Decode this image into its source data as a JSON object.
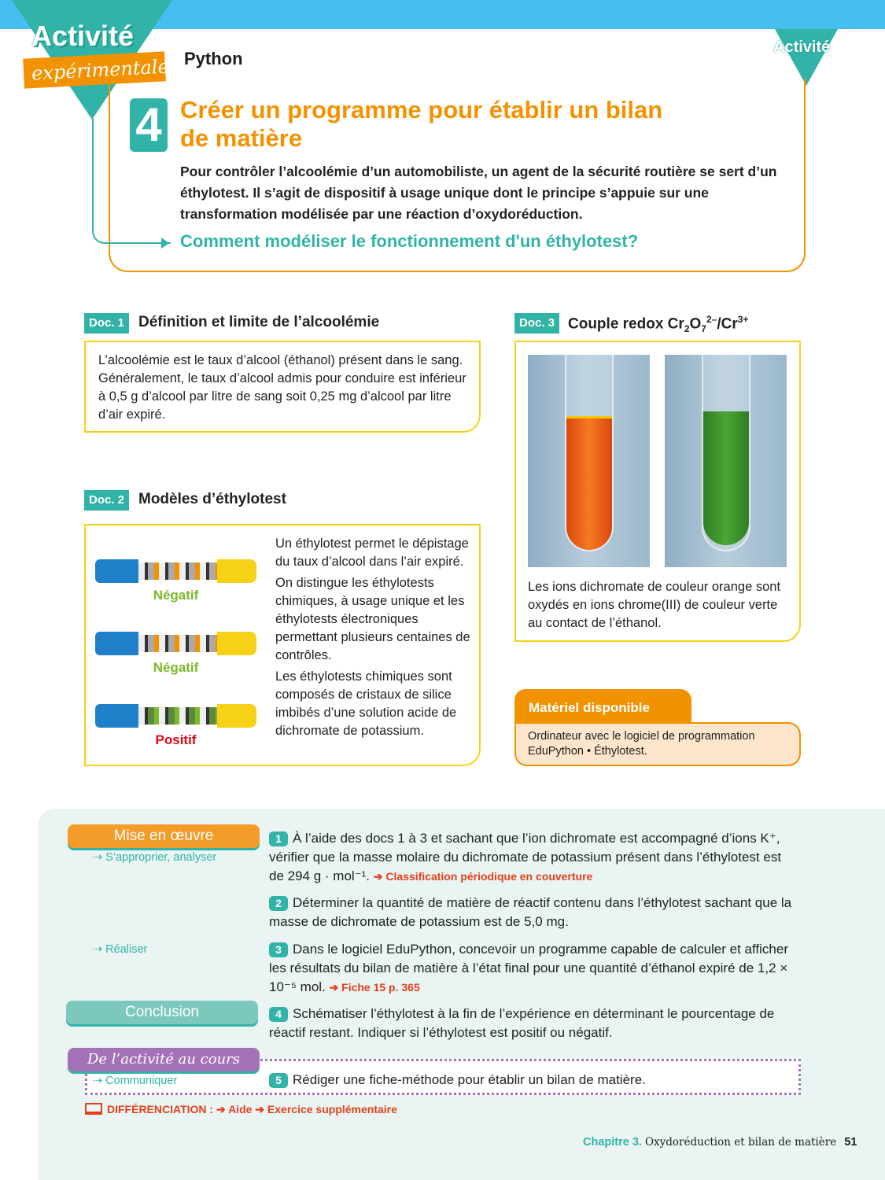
{
  "header": {
    "activity_word": "Activité",
    "activity_sub": "expérimentale",
    "activity_tab": "Activité",
    "category": "Python",
    "number": "4",
    "title": "Créer un programme pour établir un bilan de matière",
    "intro": "Pour contrôler l’alcoolémie d’un automobiliste, un agent de la sécurité routière se sert d’un éthylotest. Il s’agit de dispositif à usage unique dont le principe s’appuie sur une transformation modélisée par une réaction d’oxydoréduction.",
    "question": "Comment modéliser le fonctionnement d'un éthylotest?"
  },
  "doc1": {
    "badge": "Doc. 1",
    "title": "Définition et limite de l’alcoolémie",
    "text": "L’alcoolémie est le taux d’alcool (éthanol) présent dans le sang. Généralement, le taux d’alcool admis pour conduire est inférieur à 0,5 g d’alcool par litre de sang soit 0,25 mg d’alcool par litre d’air expiré."
  },
  "doc2": {
    "badge": "Doc. 2",
    "title": "Modèles d’éthylotest",
    "results": [
      "Négatif",
      "Négatif",
      "Positif"
    ],
    "p1": "Un éthylotest permet le dépistage du taux d’alcool dans l’air expiré.",
    "p2": "On distingue les éthylotests chimiques, à usage unique et les éthylotests électroniques permettant plusieurs centaines de contrôles.",
    "p3": "Les éthylotests chimiques sont composés de cristaux de silice imbibés d’une solution acide de dichromate de potassium."
  },
  "doc3": {
    "badge": "Doc. 3",
    "title_main": "Couple redox Cr",
    "sub2": "2",
    "o": "O",
    "sub7": "7",
    "sup2": "2–",
    "slash": "/Cr",
    "sup3": "3+",
    "caption": "Les ions dichromate de couleur orange sont oxydés en ions chrome(III) de couleur verte au contact de l’éthanol."
  },
  "materiel": {
    "title": "Matériel disponible",
    "text": "Ordinateur avec le logiciel de programmation EduPython • Éthylotest."
  },
  "work": {
    "mise": "Mise en œuvre",
    "skill1": "⇢ S’approprier, analyser",
    "skill2": "⇢ Réaliser",
    "conclusion": "Conclusion",
    "cours": "De l’activité au cours",
    "skill3": "⇢ Communiquer",
    "q1": "À l’aide des docs 1 à 3 et sachant que l’ion dichromate est accompagné d’ions K⁺, vérifier que la masse molaire du dichromate de potassium présent dans l’éthylotest est de 294 g · mol⁻¹.",
    "q1_ref": "➔ Classification périodique en couverture",
    "q2": "Déterminer la quantité de matière de réactif contenu dans l’éthylotest sachant que la masse de dichromate de potassium est de 5,0 mg.",
    "q3": "Dans le logiciel EduPython, concevoir un programme capable de calculer et afficher les résultats du bilan de matière à l’état final pour une quantité d’éthanol expiré de 1,2 × 10⁻⁵ mol.",
    "q3_ref": "➔ Fiche 15 p. 365",
    "q4": "Schématiser l’éthylotest à la fin de l’expérience en déterminant le pourcentage de réactif restant. Indiquer si l’éthylotest est positif ou négatif.",
    "q5": "Rédiger une fiche-méthode pour établir un bilan de matière.",
    "diff": "DIFFÉRENCIATION :",
    "aide": "➔ Aide",
    "exo": "➔ Exercice supplémentaire"
  },
  "footer": {
    "chapter": "Chapitre 3.",
    "chapter_title": "Oxydoréduction et bilan de matière",
    "page": "51"
  },
  "colors": {
    "teal": "#31b4a7",
    "orange": "#f39200",
    "yellow": "#f7d117",
    "blue": "#45bfef",
    "purple": "#a572b8",
    "green": "#7ab929",
    "red": "#e30613"
  }
}
